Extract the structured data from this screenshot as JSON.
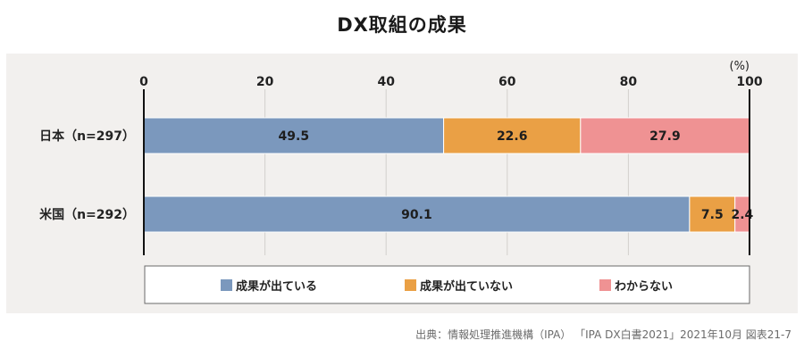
{
  "title": "DX取組の成果",
  "source": "出典：情報処理推進機構（IPA） 「IPA DX白書2021」2021年10月 図表21-7",
  "chart_data": {
    "type": "bar",
    "orientation": "horizontal",
    "stacked": true,
    "title": "DX取組の成果",
    "unit_label": "(%)",
    "xlim": [
      0,
      100
    ],
    "ticks": [
      0,
      20,
      40,
      60,
      80,
      100
    ],
    "categories": [
      "日本（n=297）",
      "米国（n=292）"
    ],
    "series": [
      {
        "name": "成果が出ている",
        "color": "#7b98bd",
        "values": [
          49.5,
          90.1
        ]
      },
      {
        "name": "成果が出ていない",
        "color": "#eaa045",
        "values": [
          22.6,
          7.5
        ]
      },
      {
        "name": "わからない",
        "color": "#ef9293",
        "values": [
          27.9,
          2.4
        ]
      }
    ],
    "data_labels": [
      [
        "49.5",
        "90.1"
      ],
      [
        "22.6",
        "7.5"
      ],
      [
        "27.9",
        "2.4"
      ]
    ],
    "legend_position": "bottom"
  }
}
